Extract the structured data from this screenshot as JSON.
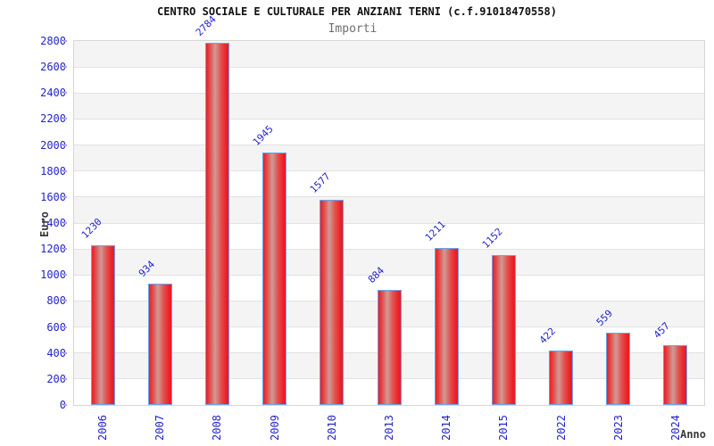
{
  "chart_data": {
    "type": "bar",
    "title": "CENTRO SOCIALE E CULTURALE PER ANZIANI TERNI (c.f.91018470558)",
    "subtitle": "Importi",
    "xlabel": "Anno",
    "ylabel": "Euro",
    "categories": [
      "2006",
      "2007",
      "2008",
      "2009",
      "2010",
      "2013",
      "2014",
      "2015",
      "2022",
      "2023",
      "2024"
    ],
    "values": [
      1230,
      934,
      2784,
      1945,
      1577,
      884,
      1211,
      1152,
      422,
      559,
      457
    ],
    "ylim": [
      0,
      2800
    ],
    "ytick_step": 200,
    "ytick_labels": [
      "0",
      "200",
      "400",
      "600",
      "800",
      "1000",
      "1200",
      "1400",
      "1600",
      "1800",
      "2000",
      "2200",
      "2400",
      "2600",
      "2800"
    ],
    "grid": "horizontal gridlines every 200 with alternating white/gray bands",
    "legend_position": "none",
    "colors": {
      "bar_fill_edge": "#ed1c24",
      "bar_fill_center": "#d09a96",
      "bar_border": "#6aa2e8",
      "axis_text": "#2323cd",
      "band_gray": "#f4f4f4",
      "gridline": "#e2e2e2",
      "plot_border": "#d6d6d6",
      "title_text": "#111111",
      "subtitle_text": "#6e6e6e",
      "axis_title_text": "#3a3a3a"
    }
  }
}
